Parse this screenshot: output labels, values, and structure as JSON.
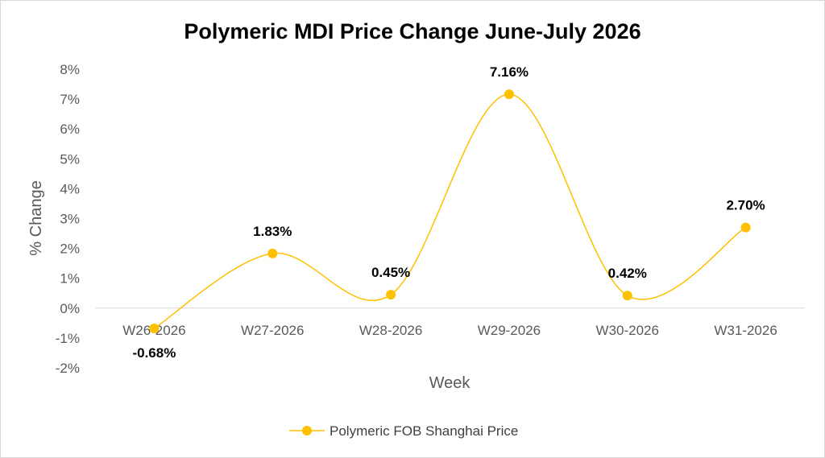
{
  "chart_data": {
    "type": "line",
    "title": "Polymeric MDI Price Change June-July 2026",
    "xlabel": "Week",
    "ylabel": "% Change",
    "categories": [
      "W26-2026",
      "W27-2026",
      "W28-2026",
      "W29-2026",
      "W30-2026",
      "W31-2026"
    ],
    "series": [
      {
        "name": "Polymeric FOB Shanghai Price",
        "values": [
          -0.68,
          1.83,
          0.45,
          7.16,
          0.42,
          2.7
        ],
        "labels": [
          "-0.68%",
          "1.83%",
          "0.45%",
          "7.16%",
          "0.42%",
          "2.70%"
        ],
        "color": "#FFC000",
        "smooth": true
      }
    ],
    "ylim": [
      -2,
      8
    ],
    "yticks": [
      "-2%",
      "-1%",
      "0%",
      "1%",
      "2%",
      "3%",
      "4%",
      "5%",
      "6%",
      "7%",
      "8%"
    ],
    "grid": false,
    "legend": "bottom",
    "axis_color": "#d9d9d9"
  }
}
